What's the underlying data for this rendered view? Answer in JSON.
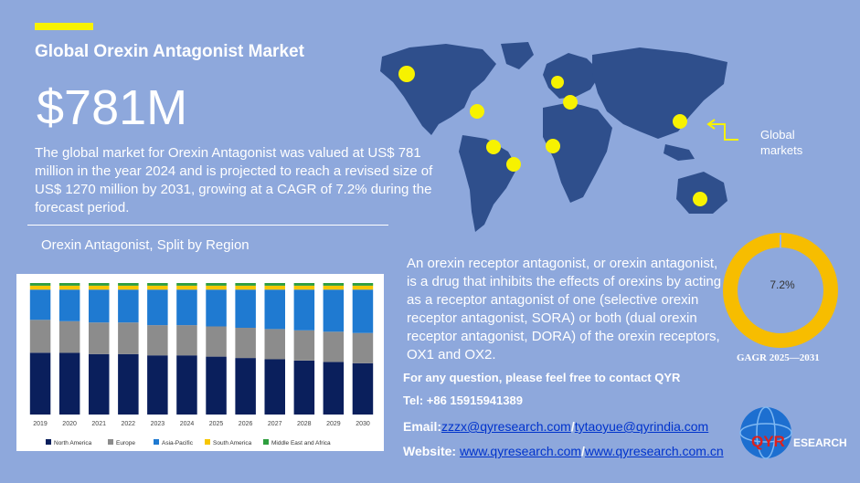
{
  "header": {
    "title": "Global Orexin Antagonist Market",
    "value": "$781M",
    "description": "The global market for Orexin Antagonist was valued at US$ 781 million in the year 2024 and is projected to reach a revised size of US$ 1270 million by 2031, growing at a CAGR of 7.2% during the forecast period."
  },
  "chart_section": {
    "label": "Orexin Antagonist, Split by Region"
  },
  "map": {
    "label": "Global markets"
  },
  "cagr": {
    "value": "7.2%",
    "label": "GAGR 2025—2031",
    "ring_color": "#f7bd00"
  },
  "about": {
    "text": "An orexin receptor antagonist, or orexin antagonist, is a drug that inhibits the effects of orexins by acting as a receptor antagonist of one (selective orexin receptor antagonist, SORA) or both (dual orexin receptor antagonist, DORA) of the orexin receptors, OX1 and OX2."
  },
  "contact": {
    "question": "For any question, please feel free to contact QYR",
    "tel": "Tel: +86 15915941389",
    "email_label": "Email:",
    "email_1": "zzzx@qyresearch.com",
    "email_sep": "/",
    "email_2": "tytaoyue@qyrindia.com",
    "website_label": "Website: ",
    "website_1": "www.qyresearch.com",
    "website_sep": "/",
    "website_2": "www.qyresearch.com.cn"
  },
  "logo": {
    "text_1": "QYR",
    "text_2": "ESEARCH"
  },
  "chart_data": {
    "type": "bar",
    "stacked": "percent",
    "categories": [
      "2019",
      "2020",
      "2021",
      "2022",
      "2023",
      "2024",
      "2025",
      "2026",
      "2027",
      "2028",
      "2029",
      "2030"
    ],
    "series": [
      {
        "name": "North America",
        "color": "#0a1f5c",
        "values": [
          47,
          47,
          46,
          46,
          45,
          45,
          44,
          43,
          42,
          41,
          40,
          39
        ]
      },
      {
        "name": "Europe",
        "color": "#8c8c8c",
        "values": [
          25,
          24,
          24,
          24,
          23,
          23,
          23,
          23,
          23,
          23,
          23,
          23
        ]
      },
      {
        "name": "Asia-Pacific",
        "color": "#1f7ad1",
        "values": [
          23,
          24,
          25,
          25,
          27,
          27,
          28,
          29,
          30,
          31,
          32,
          33
        ]
      },
      {
        "name": "South America",
        "color": "#f7c600",
        "values": [
          3,
          3,
          3,
          3,
          3,
          3,
          3,
          3,
          3,
          3,
          3,
          3
        ]
      },
      {
        "name": "Middle East and Africa",
        "color": "#2e9e3e",
        "values": [
          2,
          2,
          2,
          2,
          2,
          2,
          2,
          2,
          2,
          2,
          2,
          2
        ]
      }
    ],
    "ylim": [
      0,
      100
    ],
    "legend": "bottom"
  }
}
